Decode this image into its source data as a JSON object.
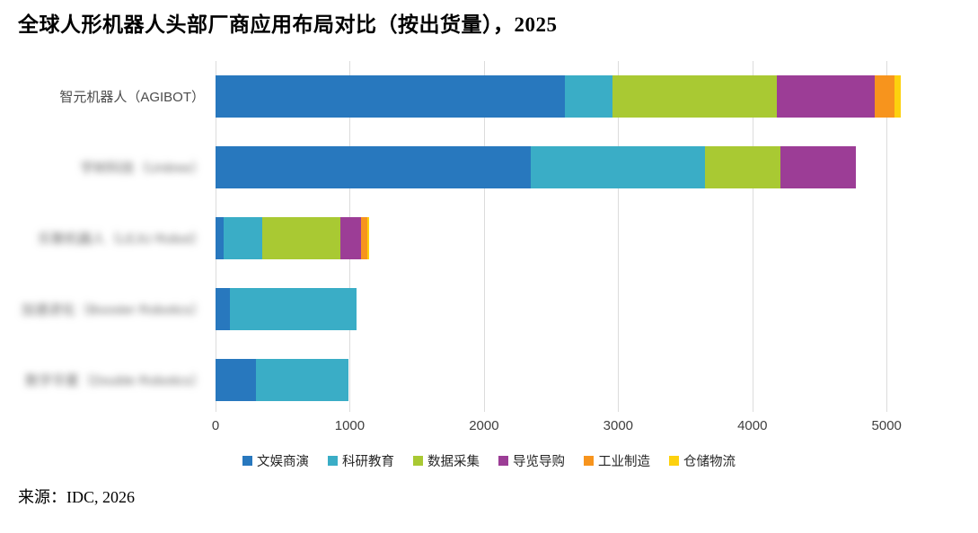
{
  "title": "全球人形机器人头部厂商应用布局对比（按出货量），2025",
  "source": "来源：IDC, 2026",
  "chart_data": {
    "type": "bar",
    "orientation": "horizontal",
    "stacked": true,
    "title": "全球人形机器人头部厂商应用布局对比（按出货量），2025",
    "xlabel": "",
    "ylabel": "",
    "xlim": [
      0,
      5420
    ],
    "x_ticks": [
      0,
      1000,
      2000,
      3000,
      4000,
      5000
    ],
    "grid": "vertical",
    "legend_position": "bottom",
    "categories": [
      {
        "label": "智元机器人（AGIBOT）",
        "blurred": false
      },
      {
        "label": "宇树科技（Unitree）",
        "blurred": true
      },
      {
        "label": "乐聚机器人（LEJU Robot）",
        "blurred": true
      },
      {
        "label": "加速进化（Booster Robotics）",
        "blurred": true
      },
      {
        "label": "数字华夏（Double Robotics）",
        "blurred": true
      }
    ],
    "series": [
      {
        "name": "文娱商演",
        "color": "#2878BE",
        "values": [
          2600,
          2350,
          60,
          110,
          300
        ]
      },
      {
        "name": "科研教育",
        "color": "#3AADC6",
        "values": [
          360,
          1300,
          290,
          940,
          690
        ]
      },
      {
        "name": "数据采集",
        "color": "#A9C933",
        "values": [
          1220,
          560,
          580,
          0,
          0
        ]
      },
      {
        "name": "导览导购",
        "color": "#9C3D96",
        "values": [
          730,
          560,
          155,
          0,
          0
        ]
      },
      {
        "name": "工业制造",
        "color": "#F7941D",
        "values": [
          150,
          0,
          45,
          0,
          0
        ]
      },
      {
        "name": "仓储物流",
        "color": "#FDD10E",
        "values": [
          45,
          0,
          15,
          0,
          0
        ]
      }
    ],
    "totals": [
      5105,
      4770,
      1145,
      1050,
      990
    ],
    "gridline_color": "#dcdcdc"
  }
}
